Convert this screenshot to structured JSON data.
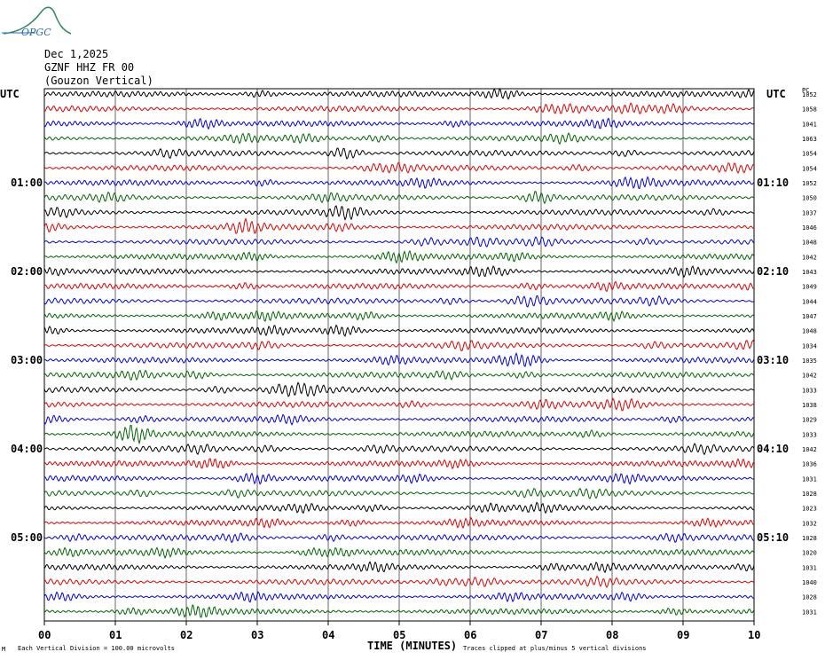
{
  "logo": {
    "text": "OPGC"
  },
  "header": {
    "date": "Dec 1,2025",
    "station": "GZNF HHZ FR 00",
    "component": "(Gouzon Vertical)"
  },
  "axis": {
    "left_unit": "UTC",
    "right_unit": "UTC",
    "right_col_header": "PC"
  },
  "footer": {
    "scale_note": "Each Vertical Division =  100.00 microvolts",
    "clip_note": "Traces clipped at plus/minus 5 vertical divisions",
    "small_mark": "M"
  },
  "colors": {
    "trace_cycle": [
      "#000000",
      "#e00000",
      "#0000e0",
      "#006600"
    ],
    "grid": "#000000"
  },
  "chart_data": {
    "type": "line",
    "title": "",
    "xlabel": "TIME (MINUTES)",
    "ylabel": "",
    "xlim": [
      0,
      10
    ],
    "x_ticks": [
      "00",
      "01",
      "02",
      "03",
      "04",
      "05",
      "06",
      "07",
      "08",
      "09",
      "10"
    ],
    "left_time_labels": [
      {
        "row": 6,
        "label": "01:00"
      },
      {
        "row": 12,
        "label": "02:00"
      },
      {
        "row": 18,
        "label": "03:00"
      },
      {
        "row": 24,
        "label": "04:00"
      },
      {
        "row": 30,
        "label": "05:00"
      }
    ],
    "right_time_labels": [
      {
        "row": 6,
        "label": "01:10"
      },
      {
        "row": 12,
        "label": "02:10"
      },
      {
        "row": 18,
        "label": "03:10"
      },
      {
        "row": 24,
        "label": "04:10"
      },
      {
        "row": 30,
        "label": "05:10"
      }
    ],
    "row_values": [
      "1052",
      "1058",
      "1041",
      "1063",
      "1054",
      "1054",
      "1052",
      "1050",
      "1037",
      "1046",
      "1048",
      "1042",
      "1043",
      "1049",
      "1044",
      "1047",
      "1048",
      "1034",
      "1035",
      "1042",
      "1033",
      "1038",
      "1029",
      "1033",
      "1042",
      "1036",
      "1031",
      "1028",
      "1023",
      "1032",
      "1028",
      "1020",
      "1031",
      "1040",
      "1028",
      "1031"
    ],
    "minutes_per_row": 10,
    "rows": 36
  }
}
